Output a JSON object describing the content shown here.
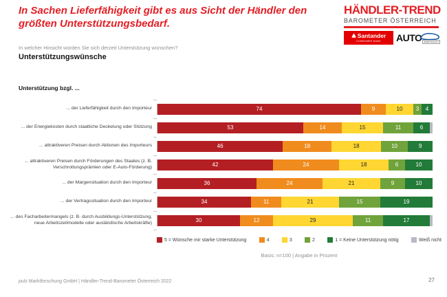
{
  "header": {
    "title": "In Sachen Lieferfähigkeit gibt es aus Sicht der Händler den größten Unterstützungsbedarf.",
    "question": "In welcher Hinsicht würden Sie sich derzeit Unterstützung wünschen?",
    "section_title": "Unterstützungswünsche"
  },
  "brand": {
    "title": "HÄNDLER-TREND",
    "subtitle": "BAROMETER ÖSTERREICH",
    "santander": "Santander",
    "santander_sub": "CONSUMER BANK",
    "auto": "AUTO",
    "auto_sub": "&WIRTSCHAFT",
    "accent_red": "#E31E24",
    "santander_red": "#E30000",
    "auto_blue": "#1B5FAA"
  },
  "chart_data": {
    "type": "bar",
    "stacked": true,
    "orientation": "horizontal",
    "axis_title": "Unterstützung bzgl. ...",
    "unit": "Prozent",
    "xlim": [
      0,
      100
    ],
    "grid": false,
    "legend_position": "bottom",
    "categories": [
      "... der Lieferfähigkeit durch den Importeur",
      "... der Energiekosten durch staatliche Deckelung oder Stützung",
      "... attraktiveren Preisen durch Aktionen des Importeurs",
      "... attraktiveren Preisen durch Förderungen des Staates (z. B. Verschrottungsprämien oder E-Auto-Förderung)",
      "... der Margensituation durch den Importeur",
      "... der Vertragssituation durch den Importeur",
      "... des Facharbeitermangels (z. B. durch Ausbildungs-Unterstützung, neue Arbeitszeitmodelle oder ausländische Arbeitskräfte)"
    ],
    "series": [
      {
        "name": "5 = Wünsche mir starke Unterstützung",
        "color": "#B41F24",
        "label_color": "#FFFFFF",
        "values": [
          74,
          53,
          46,
          42,
          36,
          34,
          30
        ]
      },
      {
        "name": "4",
        "color": "#F08C1E",
        "label_color": "#FFFFFF",
        "values": [
          9,
          14,
          18,
          24,
          24,
          11,
          12
        ]
      },
      {
        "name": "3",
        "color": "#FFD632",
        "label_color": "#262626",
        "values": [
          10,
          15,
          18,
          18,
          21,
          21,
          29
        ]
      },
      {
        "name": "2",
        "color": "#70A33B",
        "label_color": "#FFFFFF",
        "values": [
          3,
          11,
          10,
          6,
          9,
          15,
          11
        ]
      },
      {
        "name": "1 = Keine Unterstützung nötig",
        "color": "#237B39",
        "label_color": "#FFFFFF",
        "values": [
          4,
          6,
          9,
          10,
          10,
          19,
          17
        ]
      },
      {
        "name": "Weiß nicht",
        "color": "#B9B9C4",
        "label_color": "#262626",
        "values": [
          0,
          1,
          0,
          0,
          0,
          0,
          1
        ]
      }
    ],
    "min_label_value": 3
  },
  "notes": {
    "basis": "Basis: n=100 | Angabe in Prozent"
  },
  "footer": {
    "company_italic": "puls",
    "company_rest": " Marktforschung GmbH | Händler-Trend-Barometer Österreich 2022",
    "page_number": "27"
  }
}
